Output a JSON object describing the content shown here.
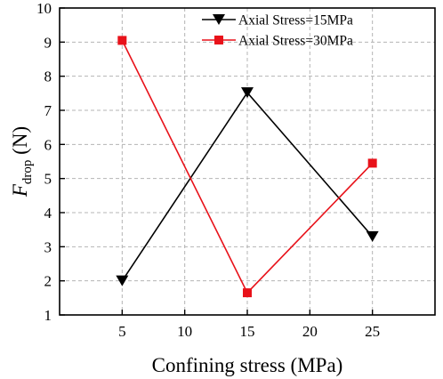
{
  "chart_data": {
    "type": "line",
    "xlabel": "Confining stress (MPa)",
    "ylabel": {
      "main": "F",
      "sub": "drop",
      "unit": " (N)"
    },
    "x": [
      5,
      15,
      25
    ],
    "xlim": [
      0,
      30
    ],
    "ylim": [
      1,
      10
    ],
    "xticks": [
      5,
      10,
      15,
      20,
      25
    ],
    "yticks": [
      1,
      2,
      3,
      4,
      5,
      6,
      7,
      8,
      9,
      10
    ],
    "grid": true,
    "legend_position": "top-right",
    "series": [
      {
        "name": "Axial Stress=15MPa",
        "values": [
          2.0,
          7.52,
          3.3
        ],
        "color": "#000000",
        "marker": "triangle-down"
      },
      {
        "name": "Axial Stress=30MPa",
        "values": [
          9.05,
          1.65,
          5.45
        ],
        "color": "#e8121a",
        "marker": "square"
      }
    ]
  }
}
